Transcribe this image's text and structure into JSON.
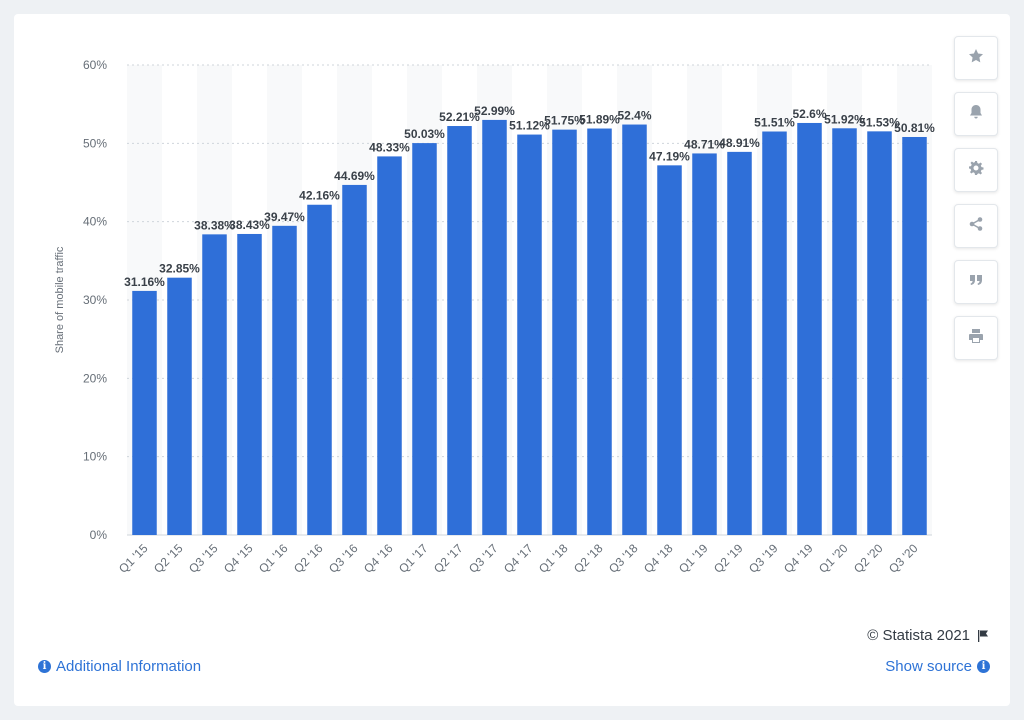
{
  "chart_data": {
    "type": "bar",
    "ylabel": "Share of mobile traffic",
    "ylim": [
      0,
      60
    ],
    "yticks": [
      "0%",
      "10%",
      "20%",
      "30%",
      "40%",
      "50%",
      "60%"
    ],
    "grid": true,
    "bar_color": "#2f6fd8",
    "categories": [
      "Q1 '15",
      "Q2 '15",
      "Q3 '15",
      "Q4 '15",
      "Q1 '16",
      "Q2 '16",
      "Q3 '16",
      "Q4 '16",
      "Q1 '17",
      "Q2 '17",
      "Q3 '17",
      "Q4 '17",
      "Q1 '18",
      "Q2 '18",
      "Q3 '18",
      "Q4 '18",
      "Q1 '19",
      "Q2 '19",
      "Q3 '19",
      "Q4 '19",
      "Q1 '20",
      "Q2 '20",
      "Q3 '20"
    ],
    "values": [
      31.16,
      32.85,
      38.38,
      38.43,
      39.47,
      42.16,
      44.69,
      48.33,
      50.03,
      52.21,
      52.99,
      51.12,
      51.75,
      51.89,
      52.4,
      47.19,
      48.71,
      48.91,
      51.51,
      52.6,
      51.92,
      51.53,
      50.81
    ],
    "labels": [
      "31.16%",
      "32.85%",
      "38.38%",
      "38.43%",
      "39.47%",
      "42.16%",
      "44.69%",
      "48.33%",
      "50.03%",
      "52.21%",
      "52.99%",
      "51.12%",
      "51.75%",
      "51.89%",
      "52.4%",
      "47.19%",
      "48.71%",
      "48.91%",
      "51.51%",
      "52.6%",
      "51.92%",
      "51.53%",
      "50.81%"
    ]
  },
  "toolbar": {
    "icons": [
      "star-icon",
      "bell-icon",
      "gear-icon",
      "share-icon",
      "quote-icon",
      "print-icon"
    ]
  },
  "footer": {
    "copyright": "© Statista 2021",
    "additional_info": "Additional Information",
    "show_source": "Show source"
  },
  "colors": {
    "accent": "#2e73d6",
    "bar": "#2f6fd8"
  }
}
